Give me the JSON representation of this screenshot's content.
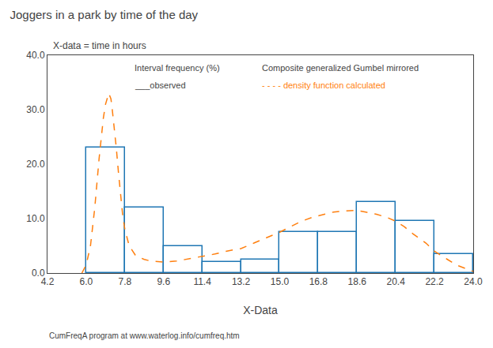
{
  "chart_data": {
    "type": "histogram",
    "title": "Joggers in a park by time of the day",
    "subtitle": "X-data = time in hours",
    "xlabel": "X-Data",
    "bins": [
      6.0,
      7.8,
      9.6,
      11.4,
      13.2,
      15.0,
      16.8,
      18.6,
      20.4,
      22.2,
      24.0
    ],
    "values": [
      23.0,
      12.0,
      5.0,
      2.0,
      2.5,
      7.5,
      7.5,
      13.0,
      9.5,
      3.5
    ],
    "color": "#1f77b4",
    "series": [
      {
        "type": "line",
        "x": [
          5.8,
          6.0,
          6.2,
          6.4,
          6.6,
          6.8,
          6.9,
          7.0,
          7.05,
          7.1,
          7.15,
          7.2,
          7.3,
          7.4,
          7.5,
          7.6,
          7.7,
          7.8,
          8.0,
          8.3,
          8.7,
          9.0,
          9.6,
          10.2,
          11.0,
          11.4,
          12.0,
          12.5,
          13.2,
          13.8,
          14.2,
          14.7,
          15.0,
          15.5,
          16.0,
          16.5,
          16.8,
          17.0,
          17.5,
          18.0,
          18.3,
          18.6,
          19.0,
          19.5,
          20.0,
          20.4,
          20.8,
          21.2,
          21.8,
          22.2,
          22.8,
          23.2,
          24.0
        ],
        "values": [
          0.0,
          1.5,
          5.0,
          12.0,
          21.0,
          28.5,
          31.0,
          32.5,
          33.0,
          32.5,
          32.0,
          30.5,
          27.0,
          23.0,
          18.5,
          14.0,
          10.5,
          8.0,
          5.0,
          3.2,
          2.5,
          2.2,
          2.0,
          2.2,
          2.8,
          3.0,
          3.5,
          4.0,
          4.5,
          5.5,
          6.2,
          7.0,
          7.5,
          8.5,
          9.5,
          10.2,
          10.5,
          10.8,
          11.2,
          11.4,
          11.5,
          11.5,
          11.2,
          10.8,
          10.2,
          9.5,
          8.5,
          7.2,
          5.5,
          4.0,
          2.5,
          1.5,
          0.3
        ],
        "color": "#ff7f0e",
        "line_style": "dashed"
      }
    ],
    "annotations": [
      {
        "text": "Interval frequency (%)"
      },
      {
        "text": "___observed"
      },
      {
        "text": "Composite generalized Gumbel mirrored"
      },
      {
        "text": "- - - - density function calculated",
        "color": "#ff7f0e"
      }
    ],
    "footer": "CumFreqA program at www.waterlog.info/cumfreq.htm",
    "xlim": [
      4.2,
      24.0
    ],
    "ylim": [
      0,
      40
    ],
    "xticks": [
      4.2,
      {
        "value": 6,
        "label": "6.0"
      },
      7.8,
      9.6,
      11.4,
      13.2,
      {
        "value": 15,
        "label": "15.0"
      },
      16.8,
      18.6,
      20.4,
      22.2,
      {
        "value": 24,
        "label": "24.0"
      }
    ],
    "yticks": [
      {
        "value": 0,
        "label": "0.0"
      },
      {
        "value": 10,
        "label": "10.0"
      },
      {
        "value": 20,
        "label": "20.0"
      },
      {
        "value": 30,
        "label": "30.0"
      },
      {
        "value": 40,
        "label": "40.0"
      }
    ],
    "grid": false
  }
}
